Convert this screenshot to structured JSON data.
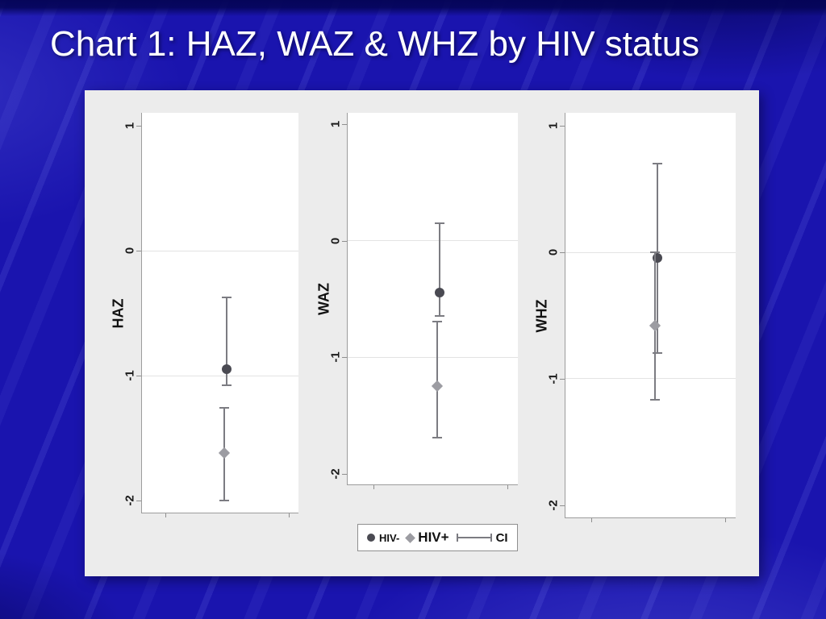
{
  "slide": {
    "title": "Chart 1: HAZ, WAZ & WHZ by HIV status"
  },
  "colors": {
    "background": "#1a14ae",
    "panel": "#ececec",
    "plot_background": "#ffffff",
    "axis_line": "#9c9c9c",
    "gridline": "#e3e3e3",
    "hiv_negative_marker": "#4a4a52",
    "hiv_positive_marker": "#9c9ca2",
    "errorbar": "#7c7c82",
    "title_text": "#ffffff"
  },
  "legend": {
    "items": [
      {
        "label": "HIV-",
        "marker": "circle"
      },
      {
        "label": "HIV+",
        "marker": "diamond"
      },
      {
        "label": "CI",
        "marker": "errorbar"
      }
    ]
  },
  "chart_data": [
    {
      "type": "scatter",
      "ylabel": "HAZ",
      "ylim": [
        -2.1,
        1.1
      ],
      "yticks": [
        1,
        0,
        -1,
        -2
      ],
      "grid": "horizontal at 0 and -1",
      "series": [
        {
          "name": "HIV-",
          "marker": "circle",
          "mean": -0.95,
          "ci_low": -1.08,
          "ci_high": -0.38
        },
        {
          "name": "HIV+",
          "marker": "diamond",
          "mean": -1.62,
          "ci_low": -2.0,
          "ci_high": -1.26
        }
      ]
    },
    {
      "type": "scatter",
      "ylabel": "WAZ",
      "ylim": [
        -2.1,
        1.1
      ],
      "yticks": [
        1,
        0,
        -1,
        -2
      ],
      "grid": "horizontal at 0 and -1",
      "series": [
        {
          "name": "HIV-",
          "marker": "circle",
          "mean": -0.45,
          "ci_low": -0.65,
          "ci_high": 0.15
        },
        {
          "name": "HIV+",
          "marker": "diamond",
          "mean": -1.25,
          "ci_low": -1.7,
          "ci_high": -0.7
        }
      ]
    },
    {
      "type": "scatter",
      "ylabel": "WHZ",
      "ylim": [
        -2.1,
        1.1
      ],
      "yticks": [
        1,
        0,
        -1,
        -2
      ],
      "grid": "horizontal at 0 and -1",
      "series": [
        {
          "name": "HIV-",
          "marker": "circle",
          "mean": -0.05,
          "ci_low": -0.8,
          "ci_high": 0.7
        },
        {
          "name": "HIV+",
          "marker": "diamond",
          "mean": -0.58,
          "ci_low": -1.17,
          "ci_high": 0.0
        }
      ]
    }
  ]
}
